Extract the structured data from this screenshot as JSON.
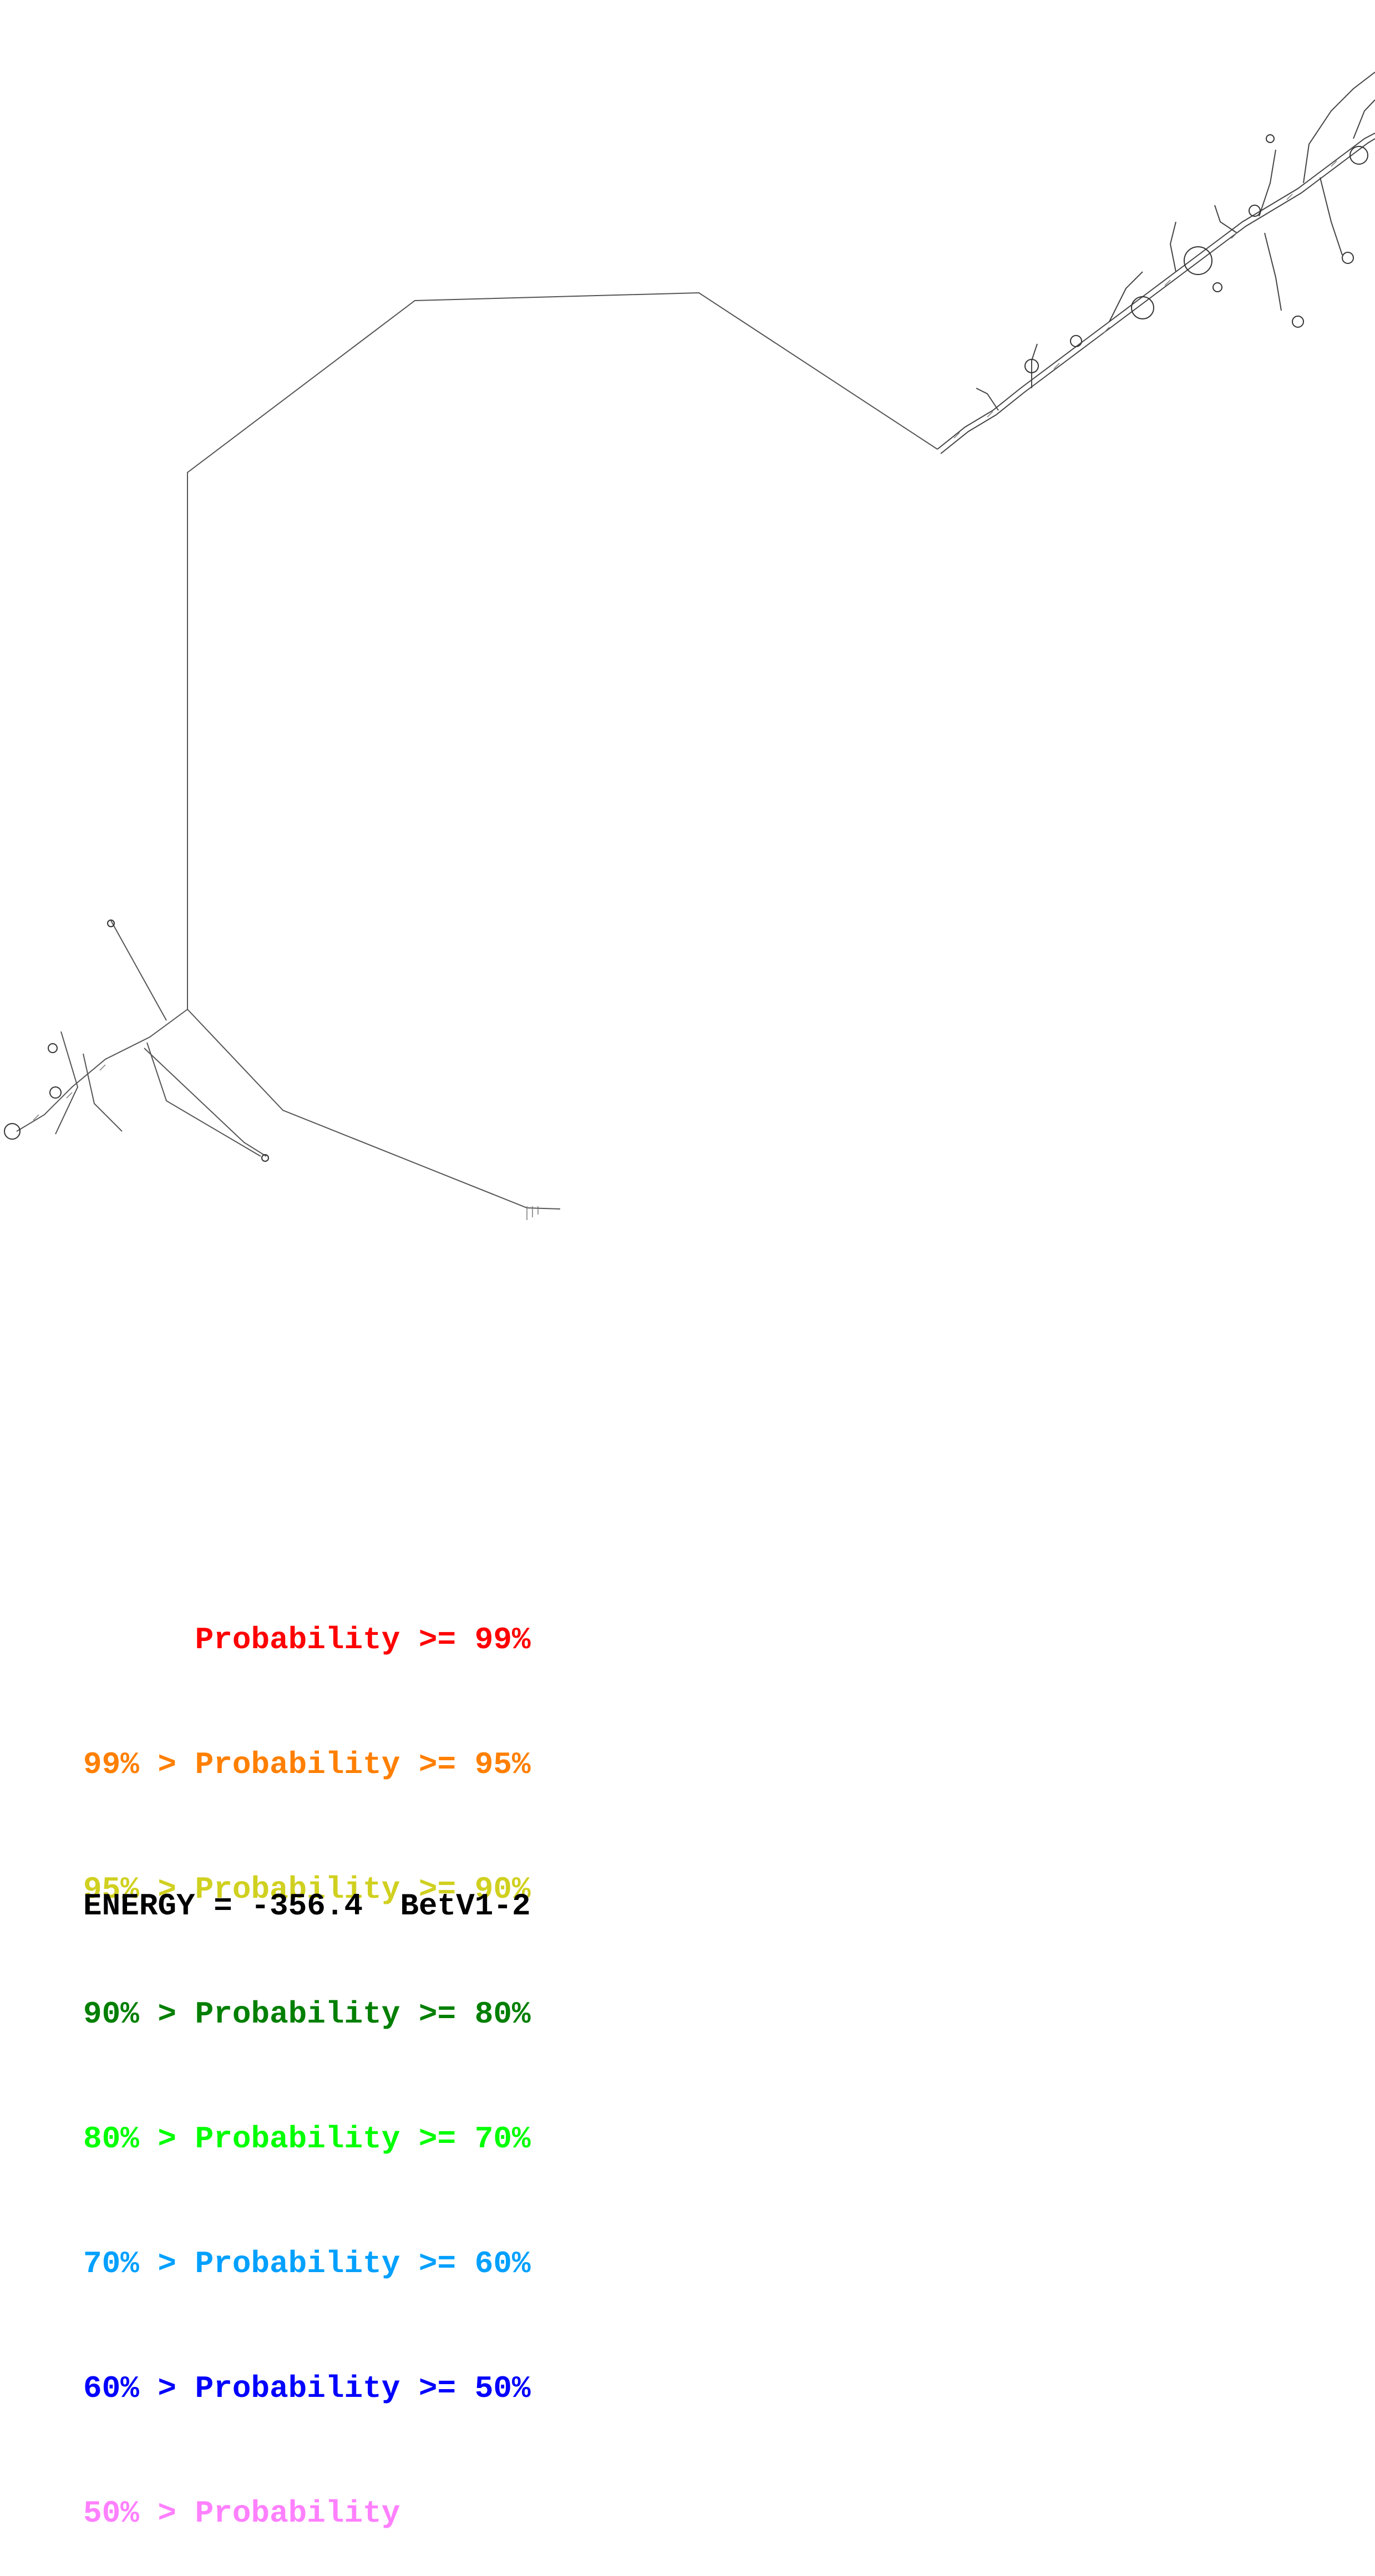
{
  "legend": {
    "rows": [
      {
        "prefix": "",
        "label": "Probability",
        "suffix": ">= 99%",
        "color": "#ff0000"
      },
      {
        "prefix": "99% >",
        "label": "Probability",
        "suffix": ">= 95%",
        "color": "#ff7f00"
      },
      {
        "prefix": "95% >",
        "label": "Probability",
        "suffix": ">= 90%",
        "color": "#d0d020"
      },
      {
        "prefix": "90% >",
        "label": "Probability",
        "suffix": ">= 80%",
        "color": "#007f00"
      },
      {
        "prefix": "80% >",
        "label": "Probability",
        "suffix": ">= 70%",
        "color": "#00ff00"
      },
      {
        "prefix": "70% >",
        "label": "Probability",
        "suffix": ">= 60%",
        "color": "#00a0ff"
      },
      {
        "prefix": "60% >",
        "label": "Probability",
        "suffix": ">= 50%",
        "color": "#0000ff"
      },
      {
        "prefix": "50% >",
        "label": "Probability",
        "suffix": "",
        "color": "#ff80ff"
      }
    ]
  },
  "footer": {
    "energy_label": "ENERGY =",
    "energy_value": "-356.4",
    "sequence_name": "BetV1-2"
  }
}
